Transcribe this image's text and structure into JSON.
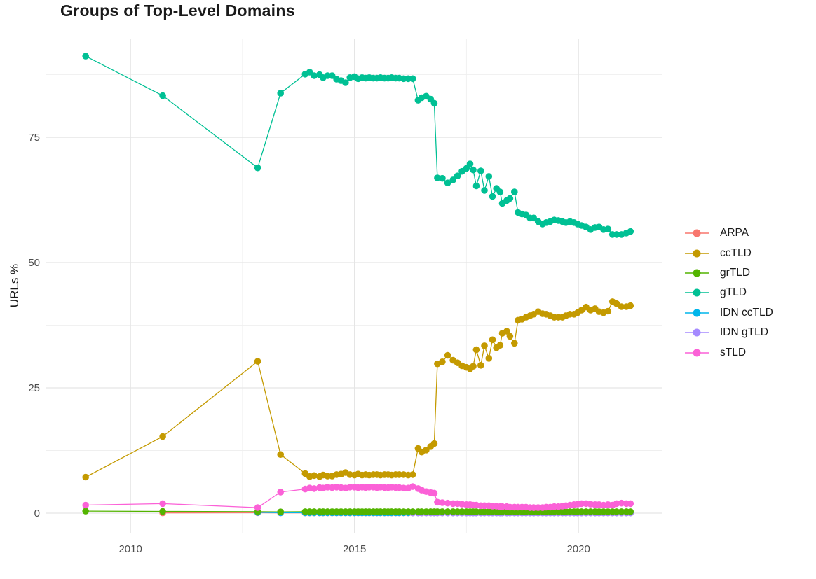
{
  "title": "Groups of Top-Level Domains",
  "axes": {
    "y_label": "URLs %",
    "x_tick_labels": [
      "2010",
      "2015",
      "2020"
    ],
    "y_tick_labels": [
      "0",
      "25",
      "50",
      "75"
    ]
  },
  "legend": {
    "items": [
      {
        "label": "ARPA",
        "color": "#F8766D"
      },
      {
        "label": "ccTLD",
        "color": "#C49A00"
      },
      {
        "label": "grTLD",
        "color": "#53B400"
      },
      {
        "label": "gTLD",
        "color": "#00C094"
      },
      {
        "label": "IDN ccTLD",
        "color": "#00B6EB"
      },
      {
        "label": "IDN gTLD",
        "color": "#A58AFF"
      },
      {
        "label": "sTLD",
        "color": "#FB61D7"
      }
    ]
  },
  "chart_data": {
    "type": "line",
    "title": "Groups of Top-Level Domains",
    "xlabel": "",
    "ylabel": "URLs %",
    "xlim": [
      2008.12,
      2021.86
    ],
    "ylim": [
      -4.05,
      94.7
    ],
    "grid": true,
    "legend_position": "right",
    "x_major_gridlines": [
      2010,
      2015,
      2020
    ],
    "x_minor_gridlines": [
      2012.5,
      2017.5
    ],
    "y_major_gridlines": [
      0,
      25,
      50,
      75
    ],
    "y_minor_gridlines": [
      12.5,
      37.5,
      62.5,
      87.5
    ],
    "x_early": [
      2009.0,
      2010.72,
      2012.84,
      2013.35
    ],
    "x_dense": [
      2013.9,
      2014.0,
      2014.1,
      2014.22,
      2014.3,
      2014.4,
      2014.5,
      2014.6,
      2014.7,
      2014.8,
      2014.9,
      2015.0,
      2015.08,
      2015.17,
      2015.25,
      2015.33,
      2015.42,
      2015.5,
      2015.58,
      2015.67,
      2015.75,
      2015.83,
      2015.92,
      2016.0,
      2016.1,
      2016.2,
      2016.3,
      2016.42,
      2016.5,
      2016.6,
      2016.7,
      2016.78,
      2016.85,
      2016.96,
      2017.08,
      2017.2,
      2017.3,
      2017.4,
      2017.5,
      2017.58,
      2017.65,
      2017.72,
      2017.82,
      2017.9,
      2018.0,
      2018.08,
      2018.17,
      2018.25,
      2018.3,
      2018.4,
      2018.47,
      2018.57,
      2018.65,
      2018.74,
      2018.83,
      2018.92,
      2019.0,
      2019.1,
      2019.2,
      2019.28,
      2019.37,
      2019.46,
      2019.55,
      2019.64,
      2019.72,
      2019.81,
      2019.9,
      2019.98,
      2020.07,
      2020.17,
      2020.27,
      2020.37,
      2020.46,
      2020.56,
      2020.66,
      2020.76,
      2020.85,
      2020.96,
      2021.07,
      2021.16
    ],
    "series": [
      {
        "name": "ARPA",
        "color": "#F8766D",
        "early": [
          null,
          0.05,
          0.1,
          0.05
        ],
        "dense": [
          0.05,
          0.05,
          0.05,
          0.05,
          0.05,
          0.05,
          0.05,
          0.05,
          0.05,
          0.05,
          0.05,
          0.05,
          0.05,
          0.05,
          0.05,
          0.05,
          0.05,
          0.05,
          0.05,
          0.05,
          0.05,
          0.05,
          0.05,
          0.05,
          0.05,
          0.05,
          0.05,
          0.05,
          0.05,
          0.05,
          0.05,
          0.05,
          0.05,
          0.05,
          0.05,
          0.05,
          0.05,
          0.05,
          0.05,
          0.05,
          0.05,
          0.05,
          0.05,
          0.05,
          0.05,
          0.05,
          0.05,
          0.05,
          0.05,
          0.05,
          0.05,
          0.05,
          0.05,
          0.05,
          0.05,
          0.05,
          0.05,
          0.05,
          0.05,
          0.05,
          0.05,
          0.05,
          0.05,
          0.05,
          0.05,
          0.05,
          0.05,
          0.05,
          0.05,
          0.05,
          0.05,
          0.05,
          0.05,
          0.05,
          0.05,
          0.05,
          0.05,
          0.05,
          0.05,
          0.05
        ]
      },
      {
        "name": "IDN ccTLD",
        "color": "#00B6EB",
        "early": [
          null,
          null,
          0.15,
          0.1
        ],
        "dense": [
          0.08,
          0.08,
          0.08,
          0.08,
          0.08,
          0.08,
          0.08,
          0.08,
          0.08,
          0.08,
          0.08,
          0.08,
          0.08,
          0.08,
          0.08,
          0.08,
          0.08,
          0.08,
          0.08,
          0.08,
          0.08,
          0.08,
          0.08,
          0.08,
          0.08,
          0.08,
          0.08,
          0.08,
          0.08,
          0.08,
          0.08,
          0.08,
          0.08,
          0.08,
          0.08,
          0.08,
          0.08,
          0.08,
          0.08,
          0.08,
          0.08,
          0.08,
          0.08,
          0.08,
          0.08,
          0.08,
          0.08,
          0.08,
          0.08,
          0.08,
          0.08,
          0.08,
          0.08,
          0.08,
          0.08,
          0.08,
          0.08,
          0.08,
          0.08,
          0.08,
          0.08,
          0.08,
          0.08,
          0.08,
          0.08,
          0.08,
          0.08,
          0.08,
          0.08,
          0.08,
          0.08,
          0.08,
          0.08,
          0.08,
          0.08,
          0.08,
          0.08,
          0.08,
          0.08,
          0.08
        ]
      },
      {
        "name": "IDN gTLD",
        "color": "#A58AFF",
        "early": [
          null,
          null,
          null,
          null
        ],
        "dense": [
          null,
          null,
          null,
          null,
          null,
          null,
          null,
          null,
          null,
          null,
          null,
          null,
          null,
          null,
          null,
          null,
          null,
          null,
          null,
          null,
          null,
          null,
          null,
          null,
          null,
          null,
          0.05,
          0.05,
          0.05,
          0.05,
          0.05,
          0.05,
          0.05,
          0.05,
          0.05,
          0.05,
          0.05,
          0.05,
          0.05,
          0.05,
          0.05,
          0.05,
          0.05,
          0.05,
          0.05,
          0.05,
          0.05,
          0.05,
          0.05,
          0.05,
          0.05,
          0.05,
          0.05,
          0.05,
          0.05,
          0.05,
          0.05,
          0.05,
          0.05,
          0.05,
          0.05,
          0.05,
          0.05,
          0.05,
          0.05,
          0.05,
          0.05,
          0.05,
          0.05,
          0.05,
          0.05,
          0.05,
          0.05,
          0.05,
          0.05,
          0.05,
          0.05,
          0.05,
          0.05,
          0.05
        ]
      },
      {
        "name": "grTLD",
        "color": "#53B400",
        "early": [
          0.4,
          0.35,
          0.3,
          0.25
        ],
        "dense": [
          0.3,
          0.3,
          0.3,
          0.3,
          0.3,
          0.3,
          0.3,
          0.3,
          0.3,
          0.3,
          0.3,
          0.3,
          0.3,
          0.3,
          0.3,
          0.3,
          0.3,
          0.3,
          0.3,
          0.3,
          0.3,
          0.3,
          0.3,
          0.3,
          0.3,
          0.3,
          0.3,
          0.3,
          0.3,
          0.3,
          0.3,
          0.3,
          0.3,
          0.3,
          0.3,
          0.3,
          0.3,
          0.3,
          0.3,
          0.3,
          0.3,
          0.3,
          0.3,
          0.3,
          0.3,
          0.3,
          0.3,
          0.3,
          0.3,
          0.3,
          0.3,
          0.3,
          0.3,
          0.3,
          0.3,
          0.3,
          0.3,
          0.3,
          0.3,
          0.3,
          0.3,
          0.3,
          0.3,
          0.3,
          0.3,
          0.3,
          0.3,
          0.3,
          0.3,
          0.3,
          0.3,
          0.3,
          0.3,
          0.3,
          0.3,
          0.3,
          0.3,
          0.3,
          0.3,
          0.3
        ]
      },
      {
        "name": "sTLD",
        "color": "#FB61D7",
        "early": [
          1.6,
          1.9,
          1.1,
          4.2
        ],
        "dense": [
          4.8,
          5.0,
          4.9,
          5.1,
          5.0,
          5.2,
          5.1,
          5.2,
          5.1,
          5.0,
          5.2,
          5.2,
          5.1,
          5.2,
          5.1,
          5.2,
          5.2,
          5.1,
          5.2,
          5.1,
          5.1,
          5.2,
          5.1,
          5.1,
          5.0,
          5.0,
          5.3,
          4.9,
          4.6,
          4.3,
          4.1,
          4.0,
          2.2,
          2.1,
          2.0,
          1.9,
          1.9,
          1.8,
          1.7,
          1.7,
          1.6,
          1.6,
          1.5,
          1.5,
          1.5,
          1.4,
          1.4,
          1.3,
          1.3,
          1.3,
          1.2,
          1.2,
          1.2,
          1.2,
          1.2,
          1.1,
          1.1,
          1.1,
          1.1,
          1.2,
          1.2,
          1.3,
          1.3,
          1.4,
          1.5,
          1.6,
          1.7,
          1.8,
          1.9,
          1.9,
          1.8,
          1.7,
          1.7,
          1.6,
          1.7,
          1.6,
          1.9,
          2.0,
          1.9,
          1.9
        ]
      },
      {
        "name": "ccTLD",
        "color": "#C49A00",
        "early": [
          7.2,
          15.3,
          30.3,
          11.7
        ],
        "dense": [
          7.9,
          7.3,
          7.5,
          7.3,
          7.6,
          7.4,
          7.4,
          7.7,
          7.8,
          8.1,
          7.7,
          7.6,
          7.8,
          7.6,
          7.7,
          7.6,
          7.7,
          7.7,
          7.6,
          7.7,
          7.7,
          7.6,
          7.7,
          7.7,
          7.7,
          7.6,
          7.7,
          12.9,
          12.2,
          12.6,
          13.3,
          13.9,
          29.8,
          30.2,
          31.5,
          30.5,
          30.0,
          29.4,
          29.1,
          28.8,
          29.3,
          32.6,
          29.5,
          33.4,
          30.9,
          34.6,
          33.0,
          33.5,
          35.9,
          36.3,
          35.3,
          33.9,
          38.5,
          38.7,
          39.1,
          39.4,
          39.7,
          40.2,
          39.8,
          39.7,
          39.4,
          39.1,
          39.1,
          39.1,
          39.4,
          39.7,
          39.7,
          40.0,
          40.5,
          41.1,
          40.5,
          40.8,
          40.2,
          40.0,
          40.3,
          42.2,
          41.8,
          41.2,
          41.2,
          41.4
        ]
      },
      {
        "name": "gTLD",
        "color": "#00C094",
        "early": [
          91.2,
          83.3,
          68.9,
          83.8
        ],
        "dense": [
          87.6,
          88.0,
          87.3,
          87.5,
          86.9,
          87.3,
          87.3,
          86.6,
          86.3,
          85.9,
          86.9,
          87.1,
          86.7,
          86.9,
          86.8,
          86.9,
          86.8,
          86.8,
          86.9,
          86.8,
          86.8,
          86.9,
          86.8,
          86.8,
          86.7,
          86.7,
          86.7,
          82.4,
          82.9,
          83.2,
          82.6,
          81.8,
          66.9,
          66.8,
          65.9,
          66.5,
          67.3,
          68.2,
          68.8,
          69.7,
          68.5,
          65.3,
          68.3,
          64.4,
          67.2,
          63.2,
          64.8,
          64.1,
          61.8,
          62.4,
          62.8,
          64.1,
          60.0,
          59.7,
          59.5,
          58.9,
          58.9,
          58.2,
          57.7,
          58.0,
          58.2,
          58.5,
          58.4,
          58.2,
          58.0,
          58.2,
          58.0,
          57.7,
          57.4,
          57.1,
          56.6,
          57.0,
          57.1,
          56.6,
          56.7,
          55.6,
          55.6,
          55.6,
          55.9,
          56.2
        ]
      }
    ]
  }
}
